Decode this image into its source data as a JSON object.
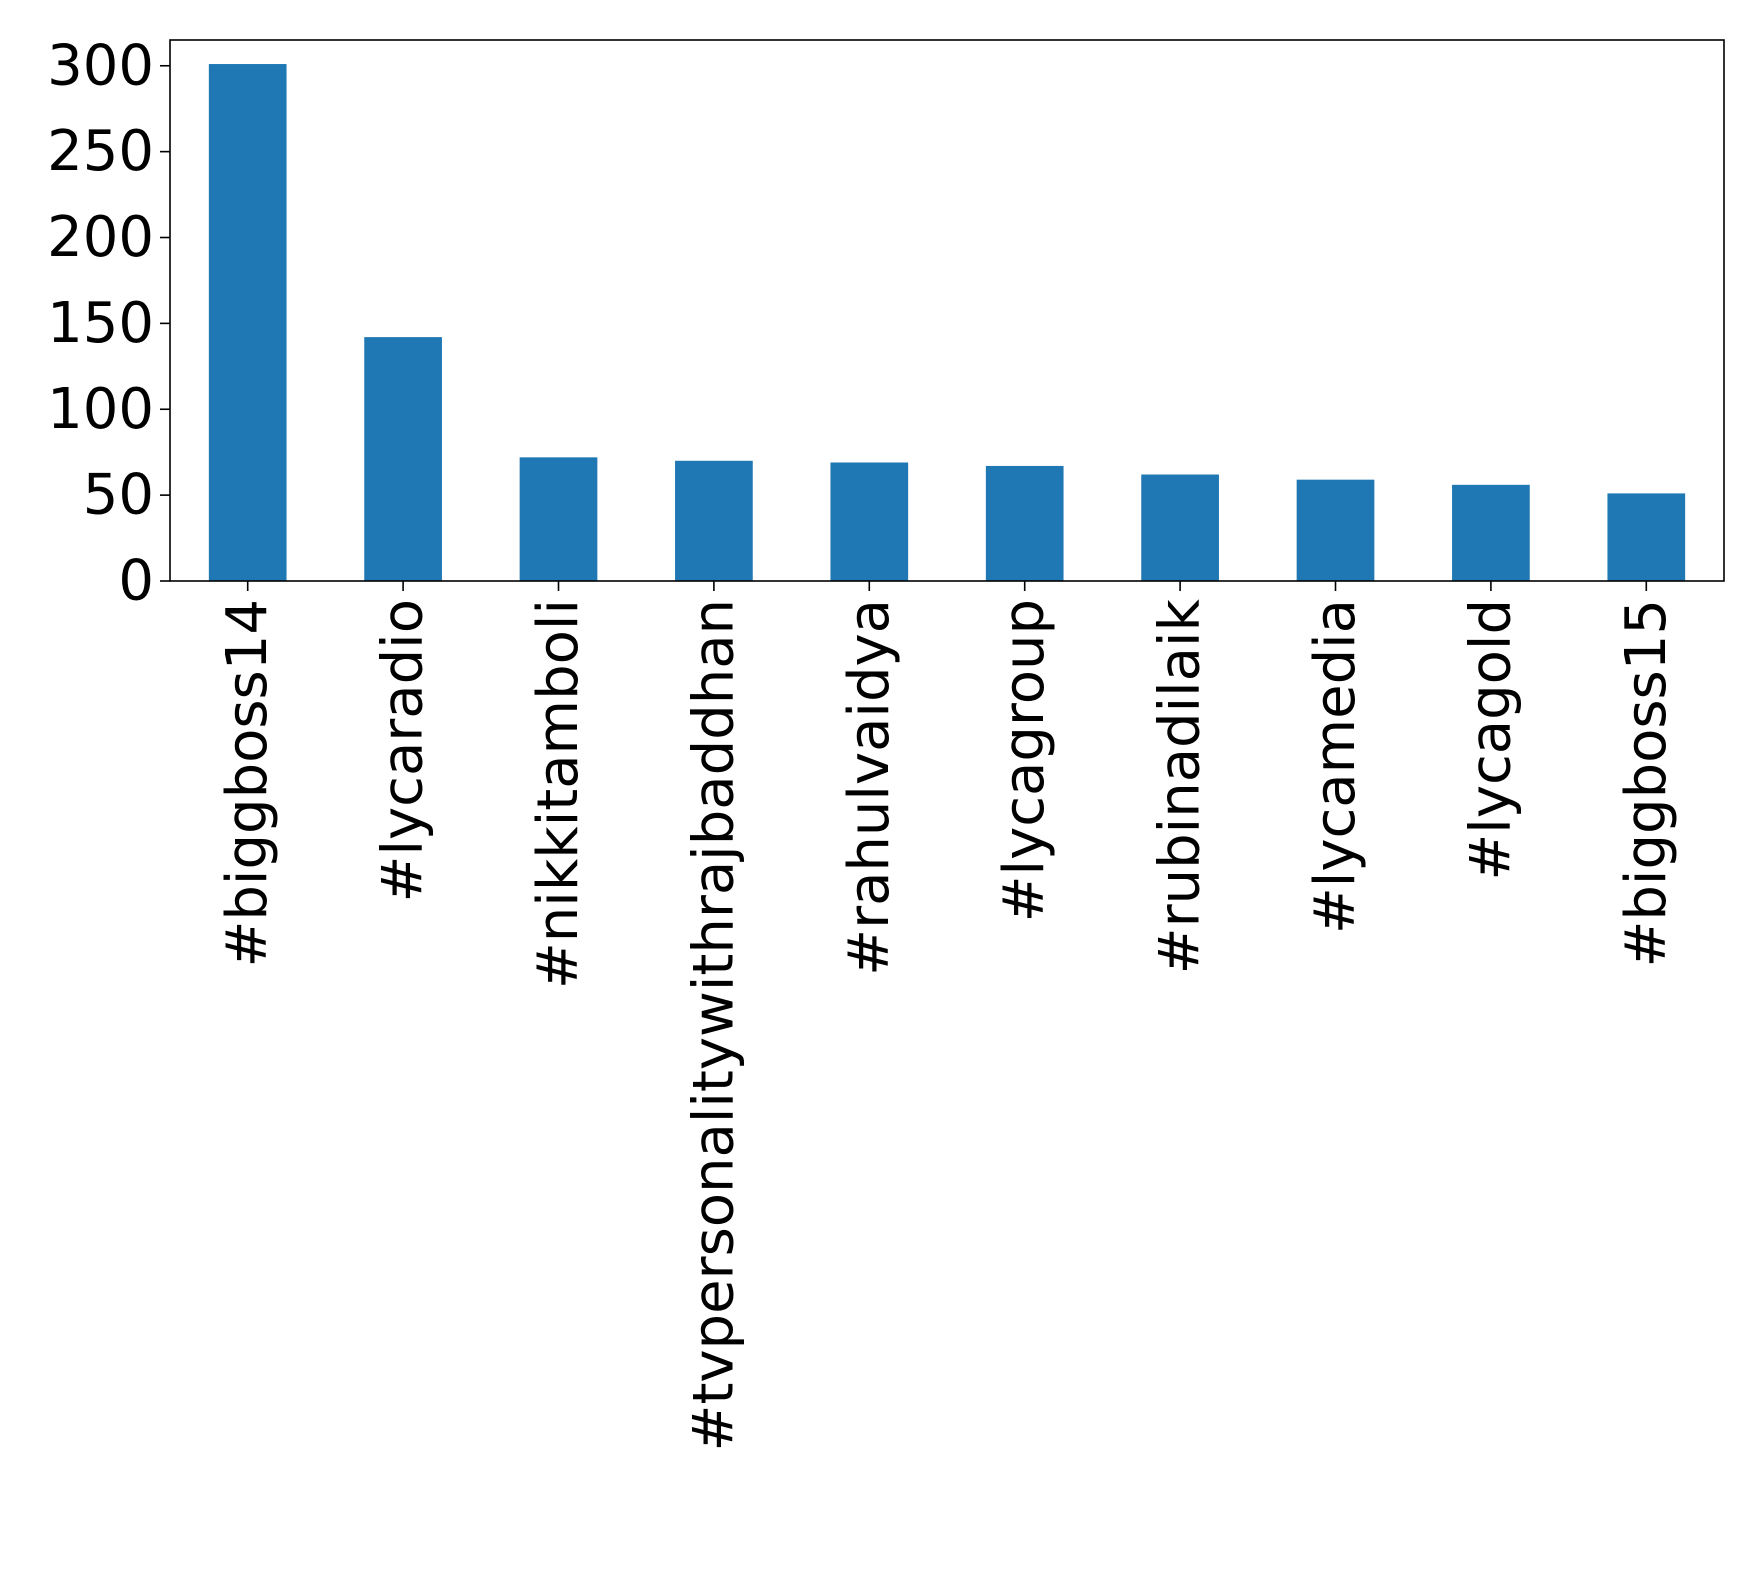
{
  "chart_data": {
    "type": "bar",
    "title": "",
    "xlabel": "",
    "ylabel": "",
    "categories": [
      "#biggboss14",
      "#lycaradio",
      "#nikkitamboli",
      "#tvpersonalitywithrajbaddhan",
      "#rahulvaidya",
      "#lycagroup",
      "#rubinadilaik",
      "#lycamedia",
      "#lycagold",
      "#biggboss15"
    ],
    "values": [
      301,
      142,
      72,
      70,
      69,
      67,
      62,
      59,
      56,
      51
    ],
    "ylim": [
      0,
      315
    ],
    "yticks": [
      0,
      50,
      100,
      150,
      200,
      250,
      300
    ],
    "bar_color": "#1f77b4",
    "grid": false,
    "legend": "none"
  }
}
